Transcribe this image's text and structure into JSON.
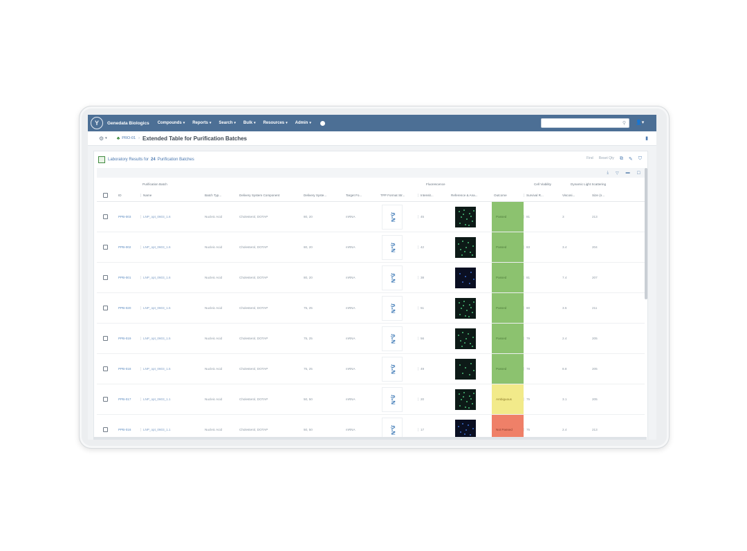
{
  "nav": {
    "brand": "Genedata Biologics",
    "items": [
      "Compounds",
      "Reports",
      "Search",
      "Bulk",
      "Resources",
      "Admin"
    ],
    "search_placeholder": ""
  },
  "breadcrumb": {
    "project": "PRO-01",
    "page_title": "Extended Table for Purification Batches"
  },
  "panel": {
    "title_prefix": "Laboratory Results for",
    "count": "24",
    "title_suffix": "Purification Batches",
    "tool_labels": [
      "Find",
      "Reset Qty"
    ]
  },
  "table": {
    "group_headers": {
      "batch": "Purification Batch",
      "fluor": "Fluorescence",
      "viability": "Cell Viability",
      "dls": "Dynamic Light Scattering"
    },
    "columns": {
      "id": "ID",
      "name": "Name",
      "batch_type": "Batch Typ...",
      "component": "Delivery System Component",
      "ratio": "Delivery Syste...",
      "target": "Target Fo...",
      "tpp": "TPP Format Str...",
      "intensity": "Intensit...",
      "reference": "Reference & Ana...",
      "outcome": "Outcome",
      "survival": "Survival R...",
      "viscosity": "Viscosi...",
      "size": "Size (n..."
    },
    "rows": [
      {
        "id": "PPB-003",
        "name": "LNP_opt_0603_1.6",
        "batch_type": "Nucleic Acid",
        "component": "Cholesterol, DOTAP",
        "ratio": "80, 20",
        "target": "mRNA",
        "intensity": "45",
        "outcome": "Passed",
        "outcome_class": "pass",
        "survival": "81",
        "viscosity": "3",
        "size": "213",
        "img": "green"
      },
      {
        "id": "PPB-002",
        "name": "LNP_opt_0603_1.6",
        "batch_type": "Nucleic Acid",
        "component": "Cholesterol, DOTAP",
        "ratio": "80, 20",
        "target": "mRNA",
        "intensity": "42",
        "outcome": "Passed",
        "outcome_class": "pass",
        "survival": "83",
        "viscosity": "3.4",
        "size": "204",
        "img": "green"
      },
      {
        "id": "PPB-001",
        "name": "LNP_opt_0603_1.6",
        "batch_type": "Nucleic Acid",
        "component": "Cholesterol, DOTAP",
        "ratio": "80, 20",
        "target": "mRNA",
        "intensity": "38",
        "outcome": "Passed",
        "outcome_class": "pass",
        "survival": "81",
        "viscosity": "7.4",
        "size": "207",
        "img": "blue"
      },
      {
        "id": "PPB-020",
        "name": "LNP_opt_0603_1.5",
        "batch_type": "Nucleic Acid",
        "component": "Cholesterol, DOTAP",
        "ratio": "75, 25",
        "target": "mRNA",
        "intensity": "51",
        "outcome": "Passed",
        "outcome_class": "pass",
        "survival": "80",
        "viscosity": "3.5",
        "size": "211",
        "img": "green"
      },
      {
        "id": "PPB-019",
        "name": "LNP_opt_0603_1.5",
        "batch_type": "Nucleic Acid",
        "component": "Cholesterol, DOTAP",
        "ratio": "75, 25",
        "target": "mRNA",
        "intensity": "56",
        "outcome": "Passed",
        "outcome_class": "pass",
        "survival": "79",
        "viscosity": "2.4",
        "size": "205",
        "img": "green"
      },
      {
        "id": "PPB-018",
        "name": "LNP_opt_0603_1.5",
        "batch_type": "Nucleic Acid",
        "component": "Cholesterol, DOTAP",
        "ratio": "75, 25",
        "target": "mRNA",
        "intensity": "49",
        "outcome": "Passed",
        "outcome_class": "pass",
        "survival": "78",
        "viscosity": "8.8",
        "size": "205",
        "img": "green"
      },
      {
        "id": "PPB-017",
        "name": "LNP_opt_0603_1.1",
        "batch_type": "Nucleic Acid",
        "component": "Cholesterol, DOTAP",
        "ratio": "50, 50",
        "target": "mRNA",
        "intensity": "20",
        "outcome": "Ambiguous",
        "outcome_class": "amb",
        "survival": "75",
        "viscosity": "3.1",
        "size": "205",
        "img": "green"
      },
      {
        "id": "PPB-016",
        "name": "LNP_opt_0603_1.1",
        "batch_type": "Nucleic Acid",
        "component": "Cholesterol, DOTAP",
        "ratio": "50, 50",
        "target": "mRNA",
        "intensity": "17",
        "outcome": "Not Passed",
        "outcome_class": "fail",
        "survival": "75",
        "viscosity": "2.4",
        "size": "213",
        "img": "blue"
      }
    ]
  },
  "colors": {
    "nav_bg": "#4c6f95",
    "pass": "#8cc26f",
    "ambiguous": "#f2ea8a",
    "fail": "#ef8068"
  }
}
